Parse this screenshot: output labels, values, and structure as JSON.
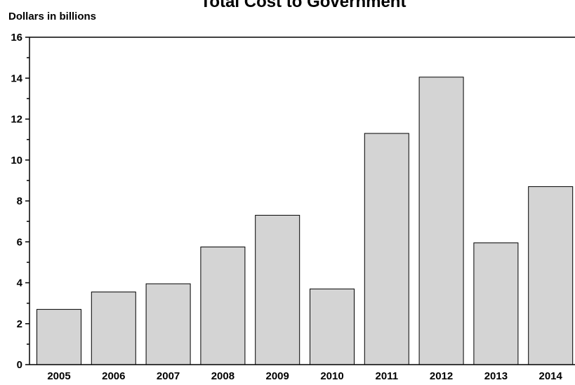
{
  "chart_data": {
    "type": "bar",
    "title": "Total Cost to Government",
    "ylabel": "Dollars in billions",
    "xlabel": "",
    "categories": [
      "2005",
      "2006",
      "2007",
      "2008",
      "2009",
      "2010",
      "2011",
      "2012",
      "2013",
      "2014"
    ],
    "values": [
      2.7,
      3.55,
      3.95,
      5.75,
      7.3,
      3.7,
      11.3,
      14.05,
      5.95,
      8.7
    ],
    "ylim": [
      0,
      16
    ],
    "yticks": [
      0,
      2,
      4,
      6,
      8,
      10,
      12,
      14,
      16
    ],
    "grid": false,
    "bar_color": "#d4d4d4"
  }
}
